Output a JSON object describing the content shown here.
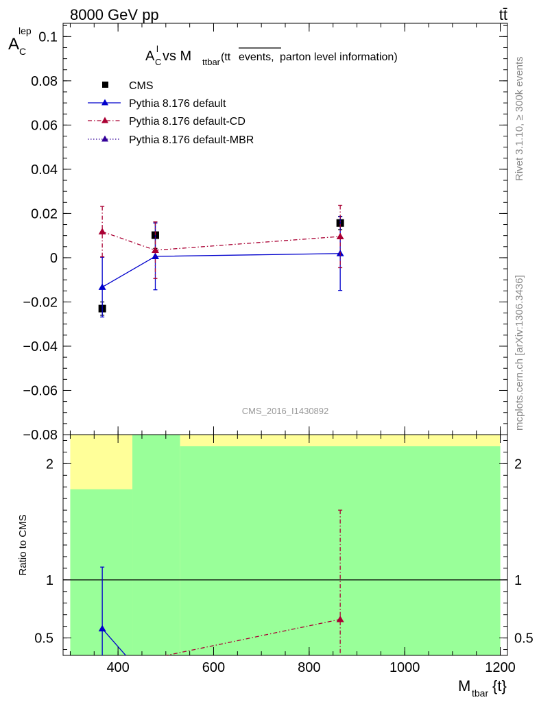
{
  "header": {
    "energy_label": "8000 GeV pp",
    "process_label": "tt̄"
  },
  "side_labels": {
    "rivet": "Rivet 3.1.10, ≥ 300k events",
    "source": "mcplots.cern.ch [arXiv:1306.3436]"
  },
  "watermark": "CMS_2016_I1430892",
  "chart_data": [
    {
      "type": "line",
      "title": {
        "main": "A",
        "main_sub": "C",
        "main_sup": "l",
        "vs": " vs M",
        "vs_sub": "ttbar",
        "paren_open": " (tt",
        "overline": "events,",
        "rest": " parton level information)"
      },
      "ylabel": {
        "main": "A",
        "sub": "C",
        "sup": "lep"
      },
      "ylim": [
        -0.08,
        0.106
      ],
      "xlim": [
        285,
        1215
      ],
      "yticks": [
        {
          "v": 0.1,
          "label": "0.1"
        },
        {
          "v": 0.08,
          "label": "0.08"
        },
        {
          "v": 0.06,
          "label": "0.06"
        },
        {
          "v": 0.04,
          "label": "0.04"
        },
        {
          "v": 0.02,
          "label": "0.02"
        },
        {
          "v": 0,
          "label": "0"
        },
        {
          "v": -0.02,
          "label": "−0.02"
        },
        {
          "v": -0.04,
          "label": "−0.04"
        },
        {
          "v": -0.06,
          "label": "−0.06"
        },
        {
          "v": -0.08,
          "label": "−0.08"
        }
      ],
      "legend_position": "top-left",
      "series": [
        {
          "name": "CMS",
          "style": "marker",
          "color": "#000000",
          "points": [
            {
              "x": 367,
              "y": -0.023,
              "err": 0.003
            },
            {
              "x": 478,
              "y": 0.0102,
              "err": 0.006
            },
            {
              "x": 865,
              "y": 0.0157,
              "err": 0.003
            }
          ]
        },
        {
          "name": "Pythia 8.176 default",
          "style": "solid",
          "color": "#0000cc",
          "points": [
            {
              "x": 367,
              "y": -0.0133,
              "err": 0.0135
            },
            {
              "x": 478,
              "y": 0.0006,
              "err": 0.0151
            },
            {
              "x": 865,
              "y": 0.0019,
              "err": 0.0167
            }
          ]
        },
        {
          "name": "Pythia 8.176 default-CD",
          "style": "dashdot",
          "color": "#aa0033",
          "points": [
            {
              "x": 367,
              "y": 0.0118,
              "err": 0.0114
            },
            {
              "x": 478,
              "y": 0.0034,
              "err": 0.0128
            },
            {
              "x": 865,
              "y": 0.0096,
              "err": 0.0141
            }
          ]
        },
        {
          "name": "Pythia 8.176 default-MBR",
          "style": "dotted",
          "color": "#330099",
          "points": []
        }
      ]
    },
    {
      "type": "line",
      "ylabel": "Ratio to CMS",
      "xlabel": {
        "main": "M",
        "sub": "tbar",
        "rest": "{t}"
      },
      "ylim": [
        0.35,
        2.25
      ],
      "xlim": [
        285,
        1215
      ],
      "yticks": [
        {
          "v": 0.5,
          "label": "0.5"
        },
        {
          "v": 1,
          "label": "1"
        },
        {
          "v": 2,
          "label": "2"
        }
      ],
      "xticks": [
        {
          "v": 400,
          "label": "400"
        },
        {
          "v": 600,
          "label": "600"
        },
        {
          "v": 800,
          "label": "800"
        },
        {
          "v": 1000,
          "label": "1000"
        },
        {
          "v": 1200,
          "label": "1200"
        }
      ],
      "bands": [
        {
          "x0": 300,
          "x1": 430,
          "green_top": 1.78,
          "yellow_top": 2.25
        },
        {
          "x0": 430,
          "x1": 530,
          "green_top": 2.25,
          "yellow_top": 2.25
        },
        {
          "x0": 530,
          "x1": 1200,
          "green_top": 2.15,
          "yellow_top": 2.25
        }
      ],
      "band_colors": {
        "green": "#99ff99",
        "yellow": "#ffff99"
      },
      "reference_line": 1,
      "series": [
        {
          "name": "Pythia 8.176 default",
          "style": "solid",
          "color": "#0000cc",
          "points": [
            {
              "x": 367,
              "y": 0.58,
              "err_lo": 0.3,
              "err_hi": 0.53
            },
            {
              "x": 478,
              "y": 0.06,
              "err_lo": 0,
              "err_hi": 0
            }
          ]
        },
        {
          "name": "Pythia 8.176 default-CD",
          "style": "dashdot",
          "color": "#aa0033",
          "points": [
            {
              "x": 478,
              "y": 0.33,
              "err_lo": 0,
              "err_hi": 0
            },
            {
              "x": 865,
              "y": 0.66,
              "err_lo": 0.35,
              "err_hi": 0.94
            }
          ]
        }
      ]
    }
  ]
}
